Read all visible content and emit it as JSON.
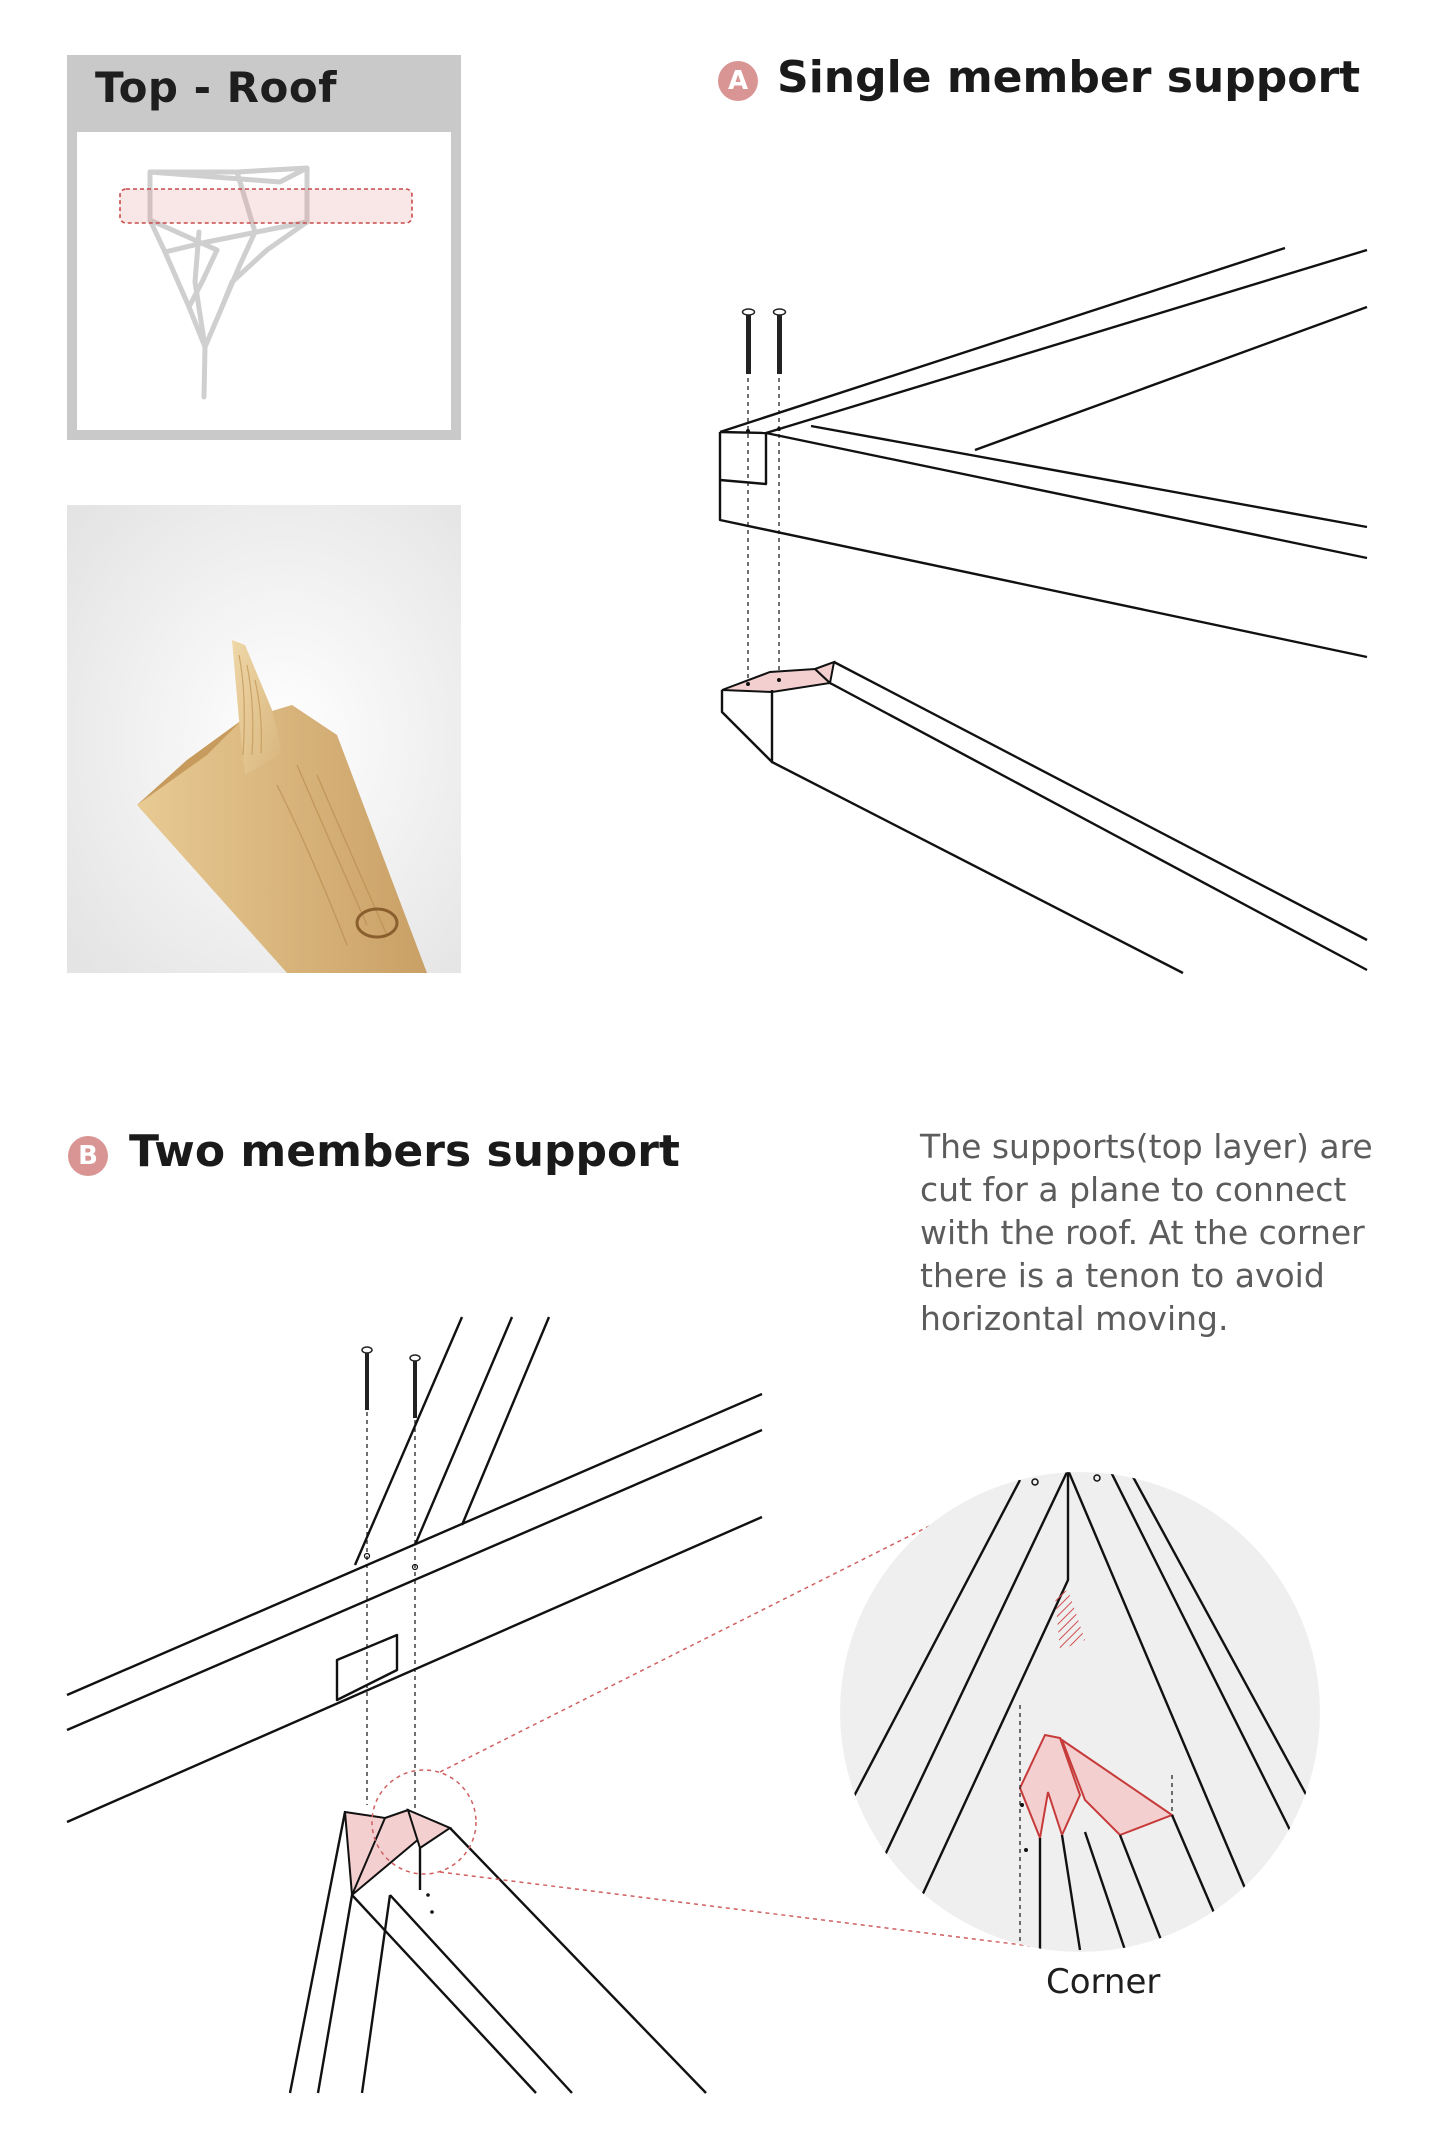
{
  "keyplan": {
    "title": "Top - Roof"
  },
  "section_a": {
    "badge": "A",
    "title": "Single member support"
  },
  "section_b": {
    "badge": "B",
    "title": "Two members support",
    "description": "The supports(top layer) are cut for a plane to connect with the roof. At the corner there is a tenon to avoid horizontal moving.",
    "detail_label": "Corner"
  },
  "colors": {
    "accent_pink": "#d99494",
    "highlight_fill": "#f3cfcf",
    "highlight_red": "#c73a3a",
    "panel_gray": "#c9c9c9",
    "text_gray": "#5c5c5c",
    "detail_bg": "#efefef"
  }
}
